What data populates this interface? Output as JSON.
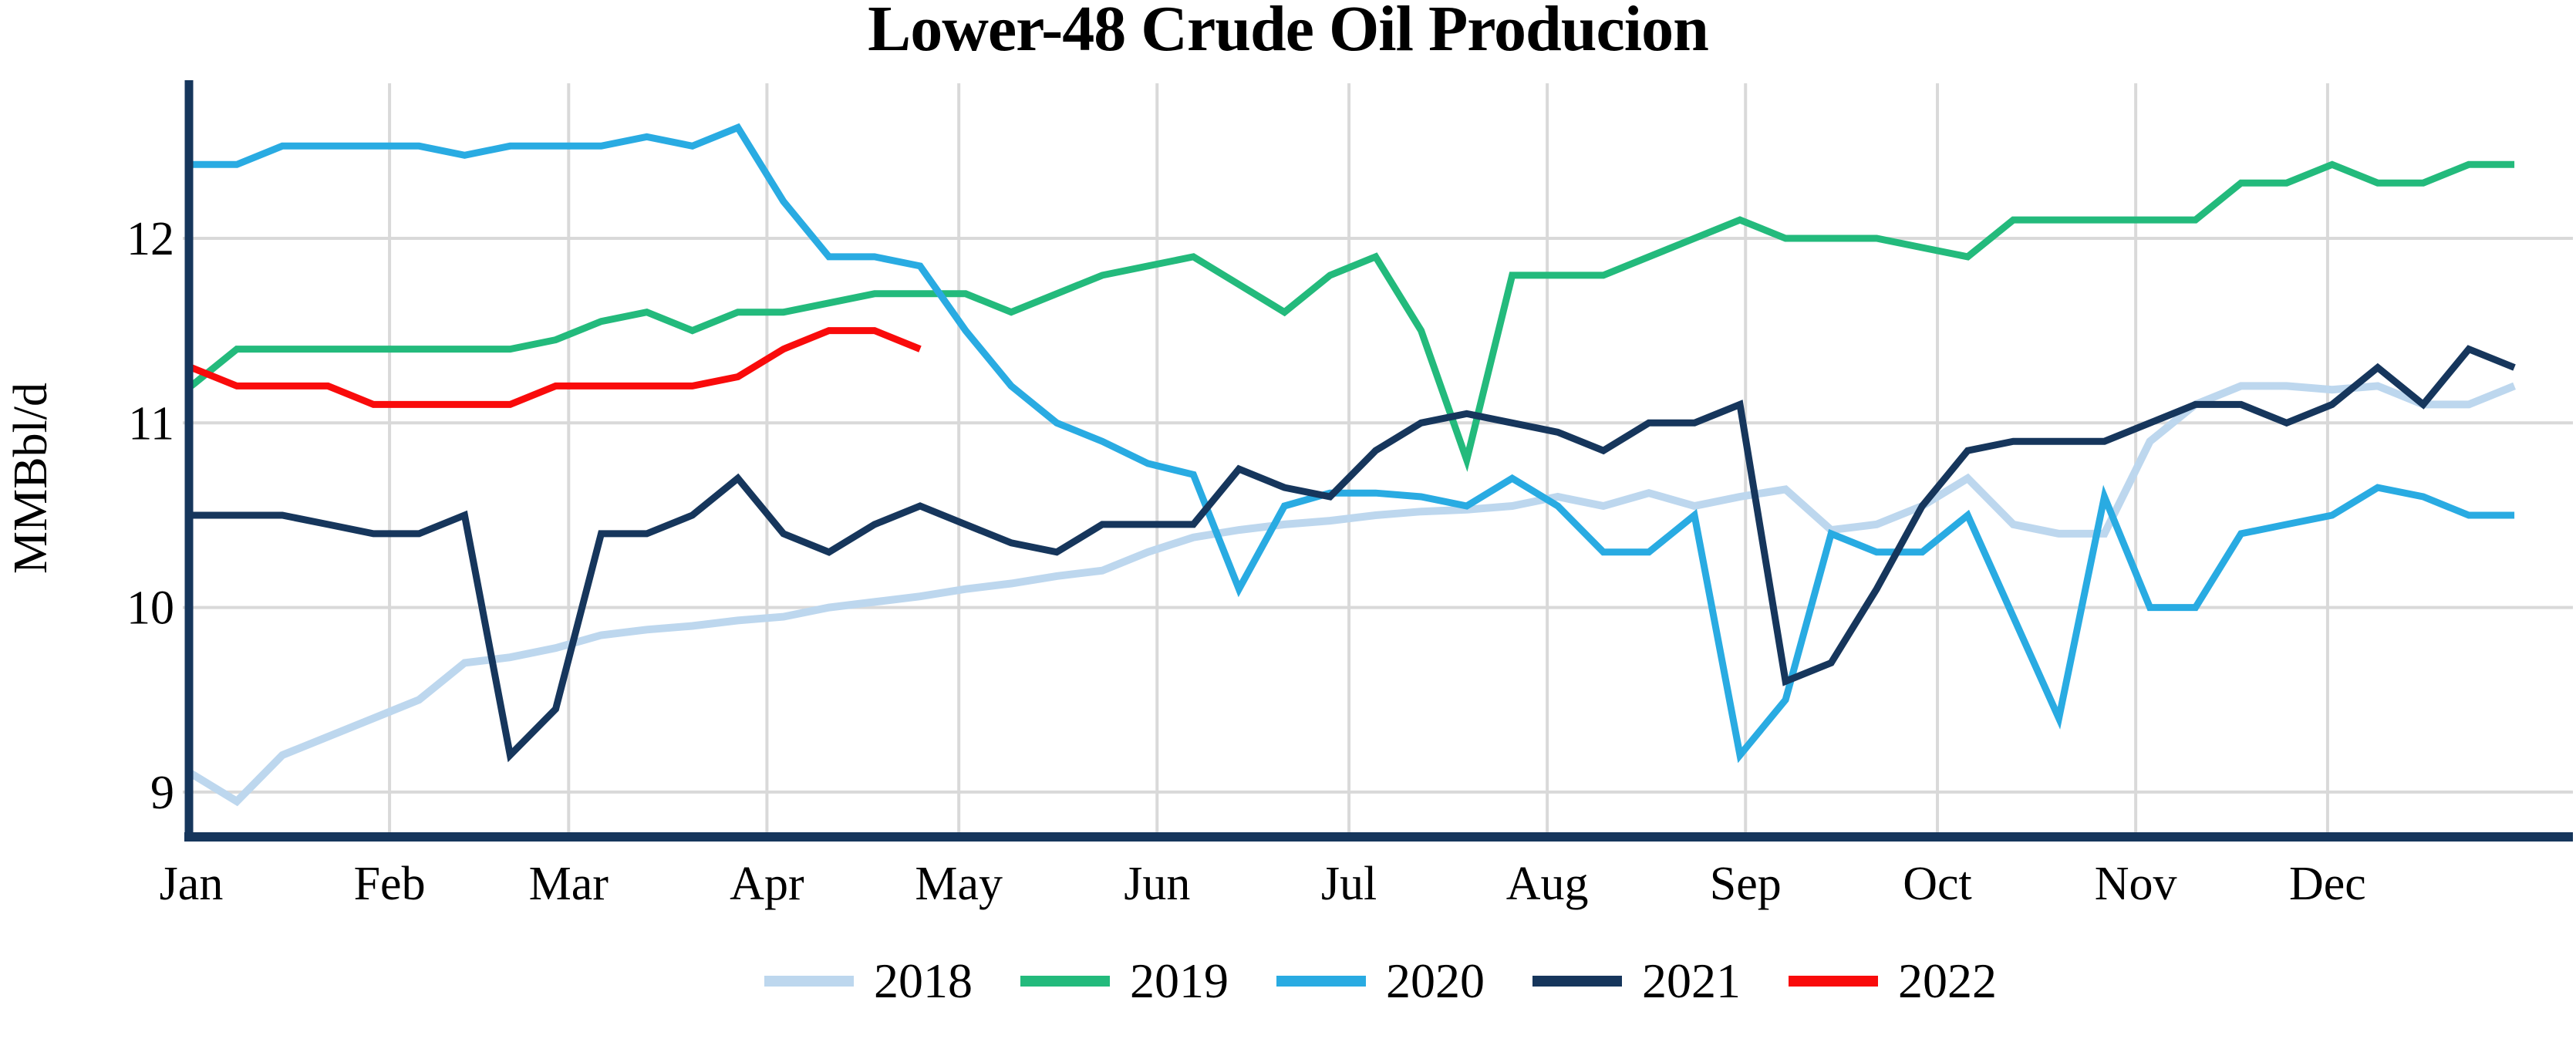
{
  "title": "Lower-48 Crude Oil Producion",
  "y_axis": {
    "label": "MMBbl/d",
    "ticks": [
      12,
      11,
      10,
      9
    ]
  },
  "x_axis": {
    "ticks": [
      "Jan",
      "Feb",
      "Mar",
      "Apr",
      "May",
      "Jun",
      "Jul",
      "Aug",
      "Sep",
      "Oct",
      "Nov",
      "Dec"
    ]
  },
  "colors": {
    "axis": "#16365C",
    "gridline": "#D9D9D9",
    "text": "#000000",
    "background": "#FFFFFF"
  },
  "legend": {
    "entries": [
      "2018",
      "2019",
      "2020",
      "2021",
      "2022"
    ]
  },
  "chart_data": {
    "type": "line",
    "title": "Lower-48 Crude Oil Producion",
    "xlabel": "",
    "ylabel": "MMBbl/d",
    "x_unit": "weekly, Jan through Dec",
    "x_tick_labels": [
      "Jan",
      "Feb",
      "Mar",
      "Apr",
      "May",
      "Jun",
      "Jul",
      "Aug",
      "Sep",
      "Oct",
      "Nov",
      "Dec"
    ],
    "ylim": [
      8.75,
      12.85
    ],
    "y_ticks": [
      9,
      10,
      11,
      12
    ],
    "grid": true,
    "legend_position": "bottom",
    "series": [
      {
        "name": "2018",
        "color": "#BDD7EE",
        "line_width": 10,
        "values": [
          9.1,
          8.95,
          9.2,
          9.3,
          9.4,
          9.5,
          9.7,
          9.73,
          9.78,
          9.85,
          9.88,
          9.9,
          9.93,
          9.95,
          10.0,
          10.03,
          10.06,
          10.1,
          10.13,
          10.17,
          10.2,
          10.3,
          10.38,
          10.42,
          10.45,
          10.47,
          10.5,
          10.52,
          10.53,
          10.55,
          10.6,
          10.55,
          10.62,
          10.55,
          10.6,
          10.64,
          10.42,
          10.45,
          10.55,
          10.7,
          10.45,
          10.4,
          10.4,
          10.9,
          11.1,
          11.2,
          11.2,
          11.18,
          11.2,
          11.1,
          11.1,
          11.2
        ]
      },
      {
        "name": "2019",
        "color": "#23BA7C",
        "line_width": 9,
        "values": [
          11.2,
          11.4,
          11.4,
          11.4,
          11.4,
          11.4,
          11.4,
          11.4,
          11.45,
          11.55,
          11.6,
          11.5,
          11.6,
          11.6,
          11.65,
          11.7,
          11.7,
          11.7,
          11.6,
          11.7,
          11.8,
          11.85,
          11.9,
          11.75,
          11.6,
          11.8,
          11.9,
          11.5,
          10.8,
          11.8,
          11.8,
          11.8,
          11.9,
          12.0,
          12.1,
          12.0,
          12.0,
          12.0,
          11.95,
          11.9,
          12.1,
          12.1,
          12.1,
          12.1,
          12.1,
          12.3,
          12.3,
          12.4,
          12.3,
          12.3,
          12.4,
          12.4
        ]
      },
      {
        "name": "2020",
        "color": "#29ABE2",
        "line_width": 9,
        "values": [
          12.4,
          12.4,
          12.5,
          12.5,
          12.5,
          12.5,
          12.45,
          12.5,
          12.5,
          12.5,
          12.55,
          12.5,
          12.6,
          12.2,
          11.9,
          11.9,
          11.85,
          11.5,
          11.2,
          11.0,
          10.9,
          10.78,
          10.72,
          10.1,
          10.55,
          10.62,
          10.62,
          10.6,
          10.55,
          10.7,
          10.55,
          10.3,
          10.3,
          10.5,
          9.2,
          9.5,
          10.4,
          10.3,
          10.3,
          10.5,
          9.95,
          9.4,
          10.6,
          10.0,
          10.0,
          10.4,
          10.45,
          10.5,
          10.65,
          10.6,
          10.5,
          10.5
        ]
      },
      {
        "name": "2021",
        "color": "#16365C",
        "line_width": 9,
        "values": [
          10.5,
          10.5,
          10.5,
          10.45,
          10.4,
          10.4,
          10.5,
          9.2,
          9.45,
          10.4,
          10.4,
          10.5,
          10.7,
          10.4,
          10.3,
          10.45,
          10.55,
          10.45,
          10.35,
          10.3,
          10.45,
          10.45,
          10.45,
          10.75,
          10.65,
          10.6,
          10.85,
          11.0,
          11.05,
          11.0,
          10.95,
          10.85,
          11.0,
          11.0,
          11.1,
          9.6,
          9.7,
          10.1,
          10.55,
          10.85,
          10.9,
          10.9,
          10.9,
          11.0,
          11.1,
          11.1,
          11.0,
          11.1,
          11.3,
          11.1,
          11.4,
          11.3
        ]
      },
      {
        "name": "2022",
        "color": "#F90B0B",
        "line_width": 9,
        "values": [
          11.3,
          11.2,
          11.2,
          11.2,
          11.1,
          11.1,
          11.1,
          11.1,
          11.2,
          11.2,
          11.2,
          11.2,
          11.25,
          11.4,
          11.5,
          11.5,
          11.4
        ]
      }
    ]
  }
}
